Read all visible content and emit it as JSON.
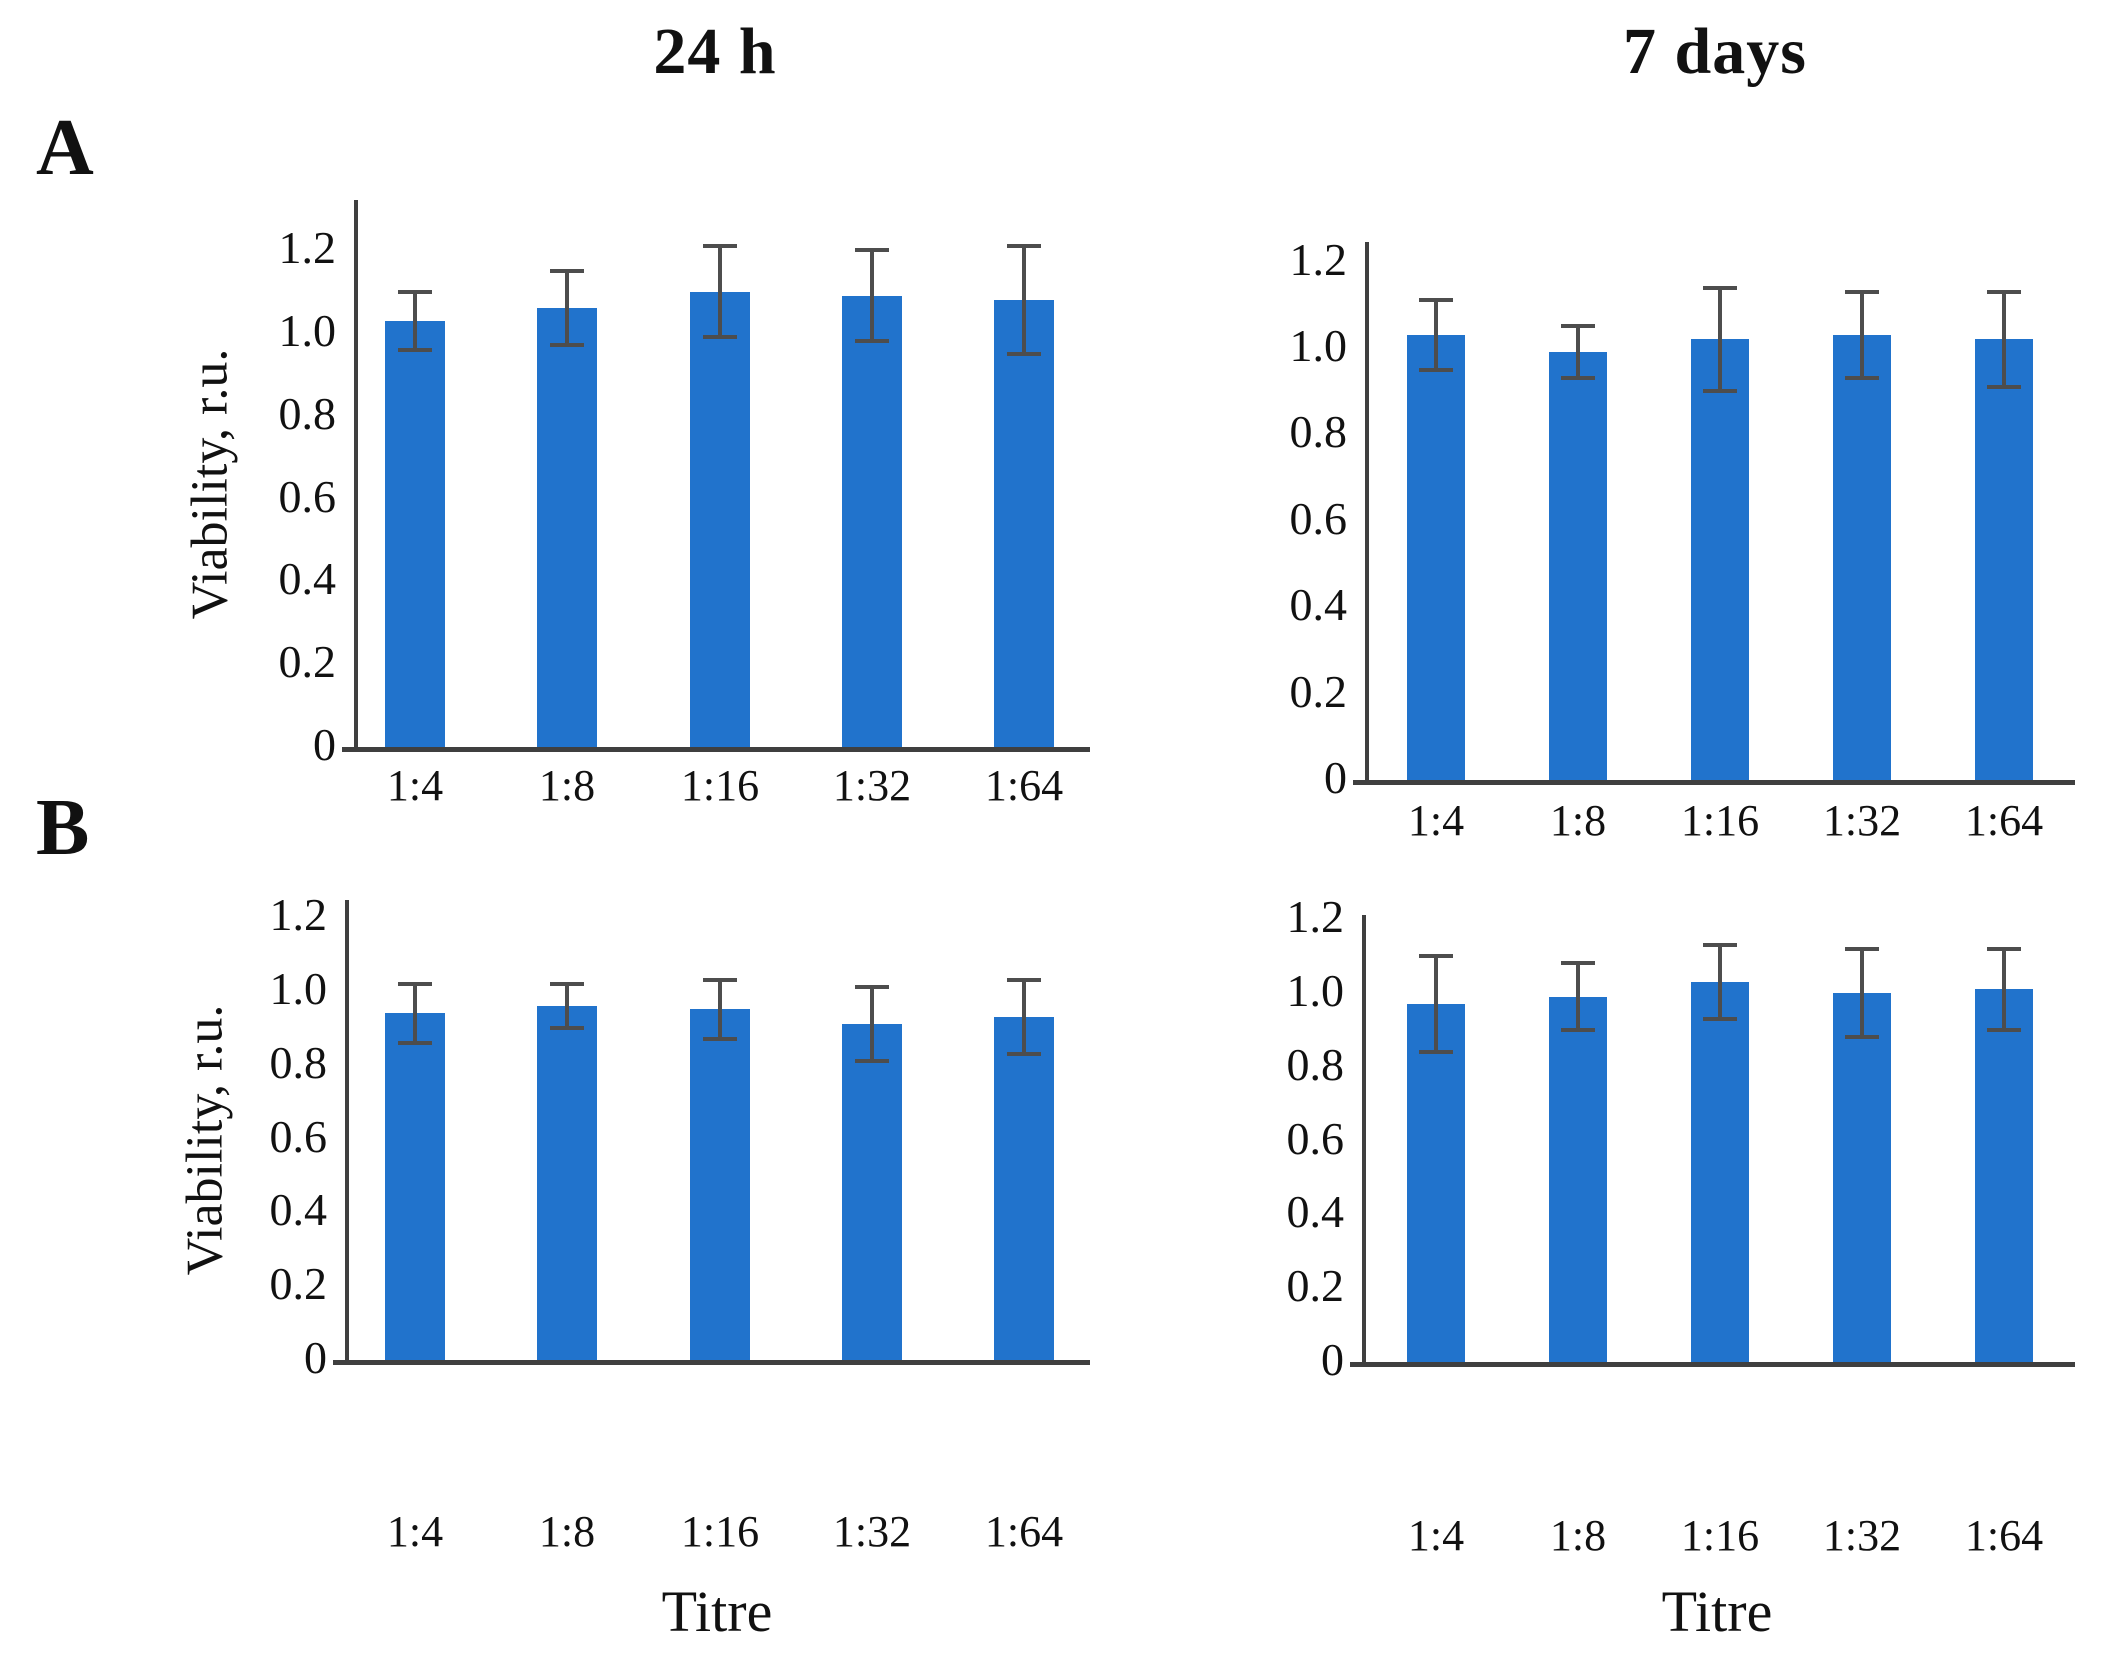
{
  "figure": {
    "column_titles": [
      "24 h",
      "7 days"
    ],
    "panel_labels": [
      "A",
      "B"
    ],
    "y_axis_title": "Viability, r.u.",
    "x_axis_title": "Titre"
  },
  "colors": {
    "bar": "#2173CC",
    "error_bar": "#4D4D4D",
    "axis": "#3F3F3F",
    "text": "#111111"
  },
  "chart_data": [
    {
      "id": "panel-A-24h",
      "panel": "A",
      "column": "24 h",
      "type": "bar",
      "categories": [
        "1:4",
        "1:8",
        "1:16",
        "1:32",
        "1:64"
      ],
      "values": [
        1.03,
        1.06,
        1.1,
        1.09,
        1.08
      ],
      "errors": [
        0.07,
        0.09,
        0.11,
        0.11,
        0.13
      ],
      "xlabel": "",
      "ylabel": "Viability, r.u.",
      "ytick_labels": [
        "0",
        "0.2",
        "0.4",
        "0.6",
        "0.8",
        "1.0",
        "1.2"
      ],
      "ylim": [
        0,
        1.3
      ],
      "grid": false,
      "legend": null
    },
    {
      "id": "panel-A-7days",
      "panel": "A",
      "column": "7 days",
      "type": "bar",
      "categories": [
        "1:4",
        "1:8",
        "1:16",
        "1:32",
        "1:64"
      ],
      "values": [
        1.03,
        0.99,
        1.02,
        1.03,
        1.02
      ],
      "errors": [
        0.08,
        0.06,
        0.12,
        0.1,
        0.11
      ],
      "xlabel": "",
      "ylabel": "",
      "ytick_labels": [
        "0",
        "0.2",
        "0.4",
        "0.6",
        "0.8",
        "1.0",
        "1.2"
      ],
      "ylim": [
        0,
        1.3
      ],
      "grid": false,
      "legend": null
    },
    {
      "id": "panel-B-24h",
      "panel": "B",
      "column": "24 h",
      "type": "bar",
      "categories": [
        "1:4",
        "1:8",
        "1:16",
        "1:32",
        "1:64"
      ],
      "values": [
        0.94,
        0.96,
        0.95,
        0.91,
        0.93
      ],
      "errors": [
        0.08,
        0.06,
        0.08,
        0.1,
        0.1
      ],
      "xlabel": "Titre",
      "ylabel": "Viability, r.u.",
      "ytick_labels": [
        "0",
        "0.2",
        "0.4",
        "0.6",
        "0.8",
        "1.0",
        "1.2"
      ],
      "ylim": [
        0,
        1.3
      ],
      "grid": false,
      "legend": null
    },
    {
      "id": "panel-B-7days",
      "panel": "B",
      "column": "7 days",
      "type": "bar",
      "categories": [
        "1:4",
        "1:8",
        "1:16",
        "1:32",
        "1:64"
      ],
      "values": [
        0.97,
        0.99,
        1.03,
        1.0,
        1.01
      ],
      "errors": [
        0.13,
        0.09,
        0.1,
        0.12,
        0.11
      ],
      "xlabel": "Titre",
      "ylabel": "",
      "ytick_labels": [
        "0",
        "0.2",
        "0.4",
        "0.6",
        "0.8",
        "1.0",
        "1.2"
      ],
      "ylim": [
        0,
        1.3
      ],
      "grid": false,
      "legend": null
    }
  ]
}
